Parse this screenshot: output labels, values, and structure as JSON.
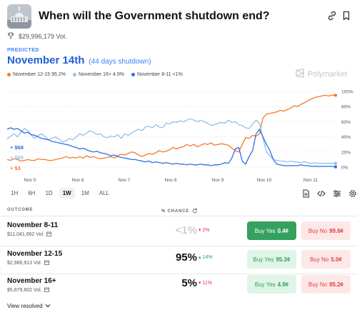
{
  "header": {
    "title": "When will the Government shutdown end?",
    "volume": "$29,996,179 Vol."
  },
  "prediction": {
    "label": "PREDICTED",
    "value": "November 14th",
    "detail": "(44 days shutdown)"
  },
  "brand": {
    "name": "Polymarket"
  },
  "chart_data": {
    "type": "line",
    "x_ticks": [
      "Nov 5",
      "Nov 6",
      "Nov 7",
      "Nov 8",
      "Nov 9",
      "Nov 10",
      "Nov 11"
    ],
    "y_ticks": [
      "0%",
      "20%",
      "40%",
      "60%",
      "80%",
      "100%"
    ],
    "ylim": [
      0,
      100
    ],
    "grid": true,
    "legend_position": "top-left",
    "series": [
      {
        "name": "November 12-15 95.2%",
        "color": "#f5782a",
        "values": [
          10,
          9,
          11,
          10,
          8,
          9,
          10,
          9,
          9,
          11,
          10,
          10,
          9,
          9,
          10,
          11,
          12,
          14,
          12,
          13,
          12,
          14,
          12,
          15,
          13,
          14,
          12,
          11,
          12,
          13,
          14,
          12,
          15,
          17,
          16,
          18,
          20,
          19,
          16,
          14,
          16,
          18,
          17,
          19,
          22,
          20,
          21,
          23,
          26,
          24,
          26,
          27,
          30,
          28,
          30,
          27,
          29,
          31,
          30,
          32,
          29,
          30,
          31,
          30,
          29,
          25,
          22,
          20,
          30,
          39,
          38,
          42,
          41,
          44,
          65,
          70,
          71,
          72,
          73,
          75,
          74,
          76,
          78,
          81,
          80,
          83,
          85,
          88,
          90,
          92,
          93,
          94,
          95,
          94,
          95,
          95
        ]
      },
      {
        "name": "November 16+ 4.9%",
        "color": "#91bff0",
        "values": [
          37,
          41,
          44,
          40,
          46,
          51,
          48,
          42,
          38,
          42,
          44,
          40,
          36,
          38,
          40,
          37,
          33,
          35,
          38,
          36,
          40,
          44,
          42,
          45,
          48,
          46,
          43,
          44,
          40,
          39,
          41,
          40,
          43,
          38,
          44,
          42,
          45,
          48,
          50,
          48,
          53,
          54,
          52,
          56,
          53,
          52,
          58,
          57,
          60,
          59,
          61,
          60,
          62,
          64,
          62,
          60,
          62,
          60,
          58,
          55,
          56,
          58,
          59,
          58,
          62,
          59,
          60,
          56,
          55,
          52,
          51,
          57,
          62,
          58,
          38,
          20,
          15,
          10,
          9,
          8,
          8,
          7,
          8,
          7,
          7,
          6,
          7,
          6,
          5,
          6,
          5,
          5,
          5,
          5,
          5,
          5
        ]
      },
      {
        "name": "November 8-11 <1%",
        "color": "#2f6fe4",
        "values": [
          50,
          52,
          50,
          51,
          48,
          45,
          46,
          43,
          42,
          40,
          38,
          37,
          36,
          34,
          33,
          32,
          31,
          30,
          29,
          27,
          26,
          24,
          25,
          23,
          21,
          20,
          21,
          19,
          18,
          17,
          15,
          16,
          14,
          13,
          12,
          11,
          10,
          10,
          9,
          8,
          7,
          8,
          6,
          7,
          6,
          5,
          6,
          5,
          4,
          5,
          4,
          4,
          3,
          4,
          3,
          3,
          4,
          3,
          3,
          2,
          3,
          3,
          4,
          6,
          5,
          12,
          24,
          26,
          8,
          4,
          14,
          22,
          44,
          50,
          40,
          30,
          22,
          10,
          4,
          3,
          2,
          2,
          2,
          2,
          2,
          3,
          2,
          2,
          1,
          1,
          1,
          1,
          1,
          1,
          1,
          0.4
        ]
      }
    ],
    "value_labels": [
      "+ $68",
      "+ $65",
      "+ $3"
    ]
  },
  "ranges": [
    "1H",
    "6H",
    "1D",
    "1W",
    "1M",
    "ALL"
  ],
  "active_range": "1W",
  "table": {
    "col_outcome": "OUTCOME",
    "col_chance": "% CHANCE",
    "rows": [
      {
        "name": "November 8-11",
        "volume": "$11,041,662 Vol.",
        "pct": "<1%",
        "change": "▾ 2%",
        "yes_label": "Buy Yes",
        "yes_price": "0.4¢",
        "no_label": "Buy No",
        "no_price": "99.6¢"
      },
      {
        "name": "November 12-15",
        "volume": "$2,986,913 Vol.",
        "pct": "95%",
        "change": "▴ 14%",
        "yes_label": "Buy Yes",
        "yes_price": "95.3¢",
        "no_label": "Buy No",
        "no_price": "5.0¢"
      },
      {
        "name": "November 16+",
        "volume": "$5,879,602 Vol.",
        "pct": "5%",
        "change": "▾ 11%",
        "yes_label": "Buy Yes",
        "yes_price": "4.9¢",
        "no_label": "Buy No",
        "no_price": "95.2¢"
      }
    ]
  },
  "footer": {
    "view_resolved": "View resolved"
  }
}
